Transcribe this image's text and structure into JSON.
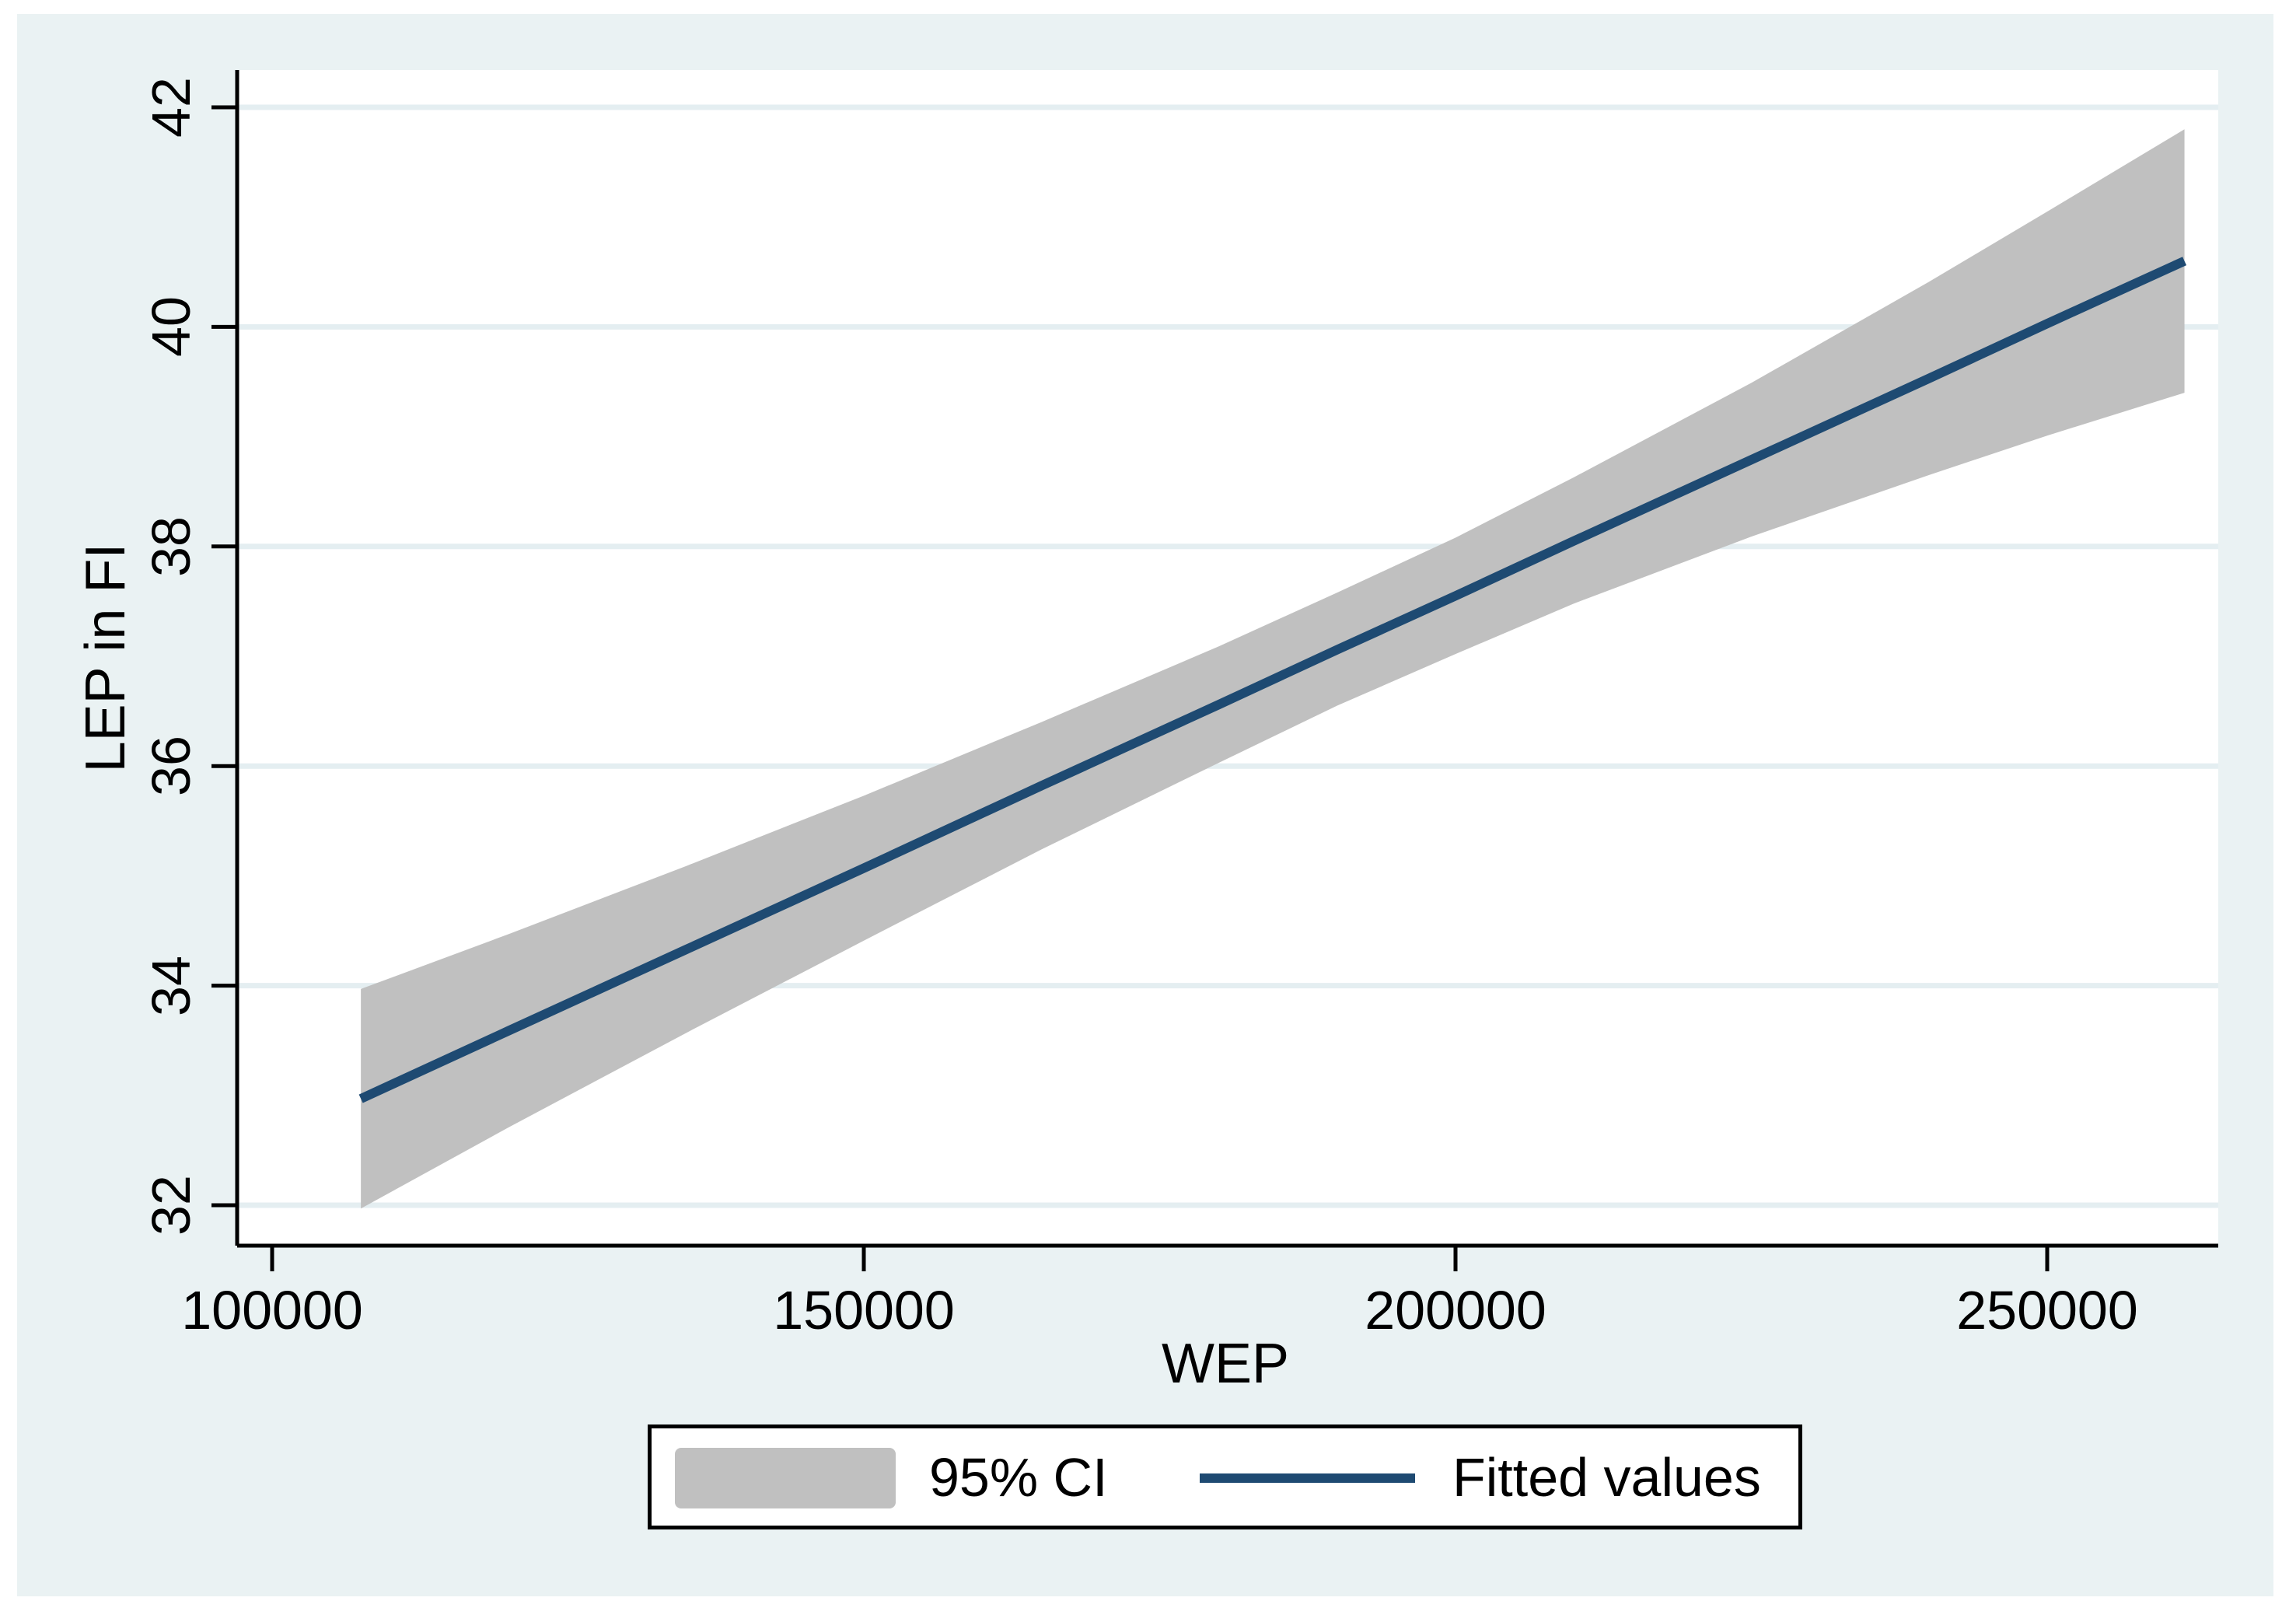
{
  "colors": {
    "page_bg": "#ffffff",
    "graph_bg": "#eaf2f3",
    "plot_bg": "#ffffff",
    "grid": "#e4eef1",
    "axis": "#000000",
    "text": "#000000",
    "band": "#c0c0c0",
    "fit_line": "#1e4a72",
    "legend_border": "#000000"
  },
  "chart_data": {
    "type": "line",
    "title": "",
    "xlabel": "WEP",
    "ylabel": "LEP in FI",
    "xlim": [
      97000,
      264500
    ],
    "ylim": [
      31.6,
      42.35
    ],
    "grid": "horizontal",
    "x_ticks": [
      100000,
      150000,
      200000,
      250000
    ],
    "x_tick_labels": [
      "100000",
      "150000",
      "200000",
      "250000"
    ],
    "y_ticks": [
      32,
      34,
      36,
      38,
      40,
      42
    ],
    "y_tick_labels": [
      "32",
      "34",
      "36",
      "38",
      "40",
      "42"
    ],
    "legend_position": "bottom-center",
    "series": [
      {
        "name": "95% CI",
        "type": "confidence-band",
        "color": "#c0c0c0",
        "x": [
          107500,
          120000,
          135000,
          150000,
          165000,
          180000,
          190000,
          200000,
          210000,
          225000,
          240000,
          250000,
          261600
        ],
        "upper": [
          33.97,
          34.47,
          35.09,
          35.73,
          36.4,
          37.09,
          37.58,
          38.08,
          38.63,
          39.49,
          40.41,
          41.05,
          41.8
        ],
        "lower": [
          31.97,
          32.71,
          33.57,
          34.41,
          35.24,
          36.03,
          36.55,
          37.02,
          37.48,
          38.09,
          38.65,
          39.01,
          39.4
        ]
      },
      {
        "name": "Fitted values",
        "type": "line",
        "color": "#1e4a72",
        "x": [
          107500,
          120000,
          135000,
          150000,
          165000,
          180000,
          190000,
          200000,
          210000,
          225000,
          240000,
          250000,
          261600
        ],
        "y": [
          32.97,
          33.59,
          34.33,
          35.07,
          35.82,
          36.56,
          37.06,
          37.55,
          38.05,
          38.79,
          39.53,
          40.03,
          40.6
        ]
      }
    ]
  }
}
